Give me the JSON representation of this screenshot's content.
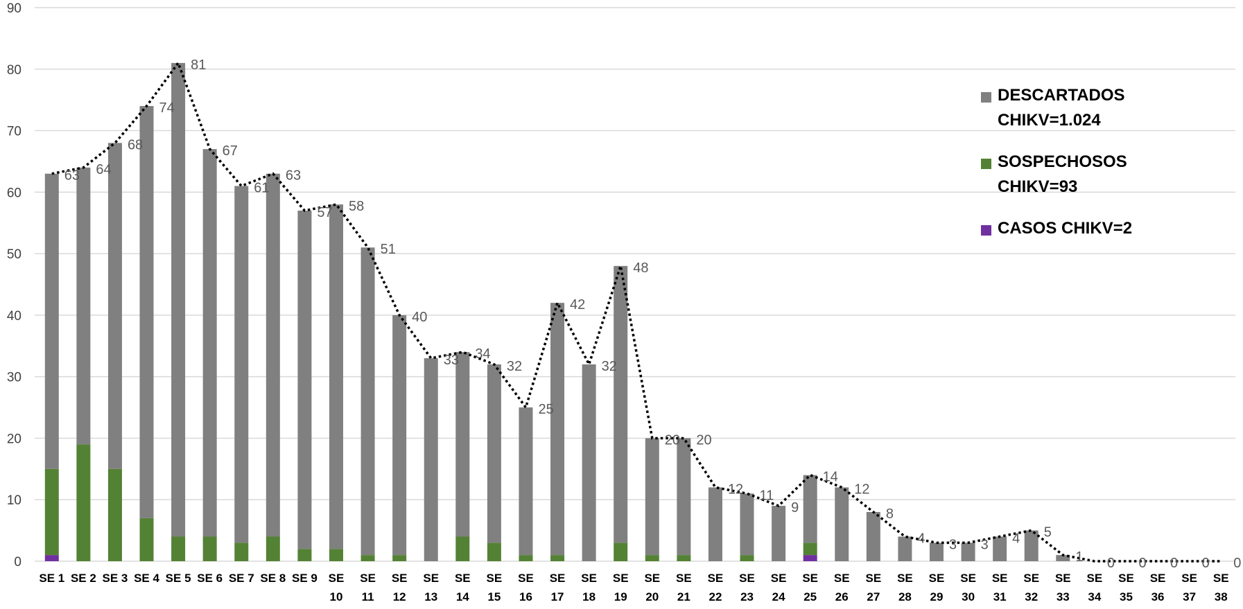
{
  "chart_data": {
    "type": "bar",
    "stacked": true,
    "ylim": [
      0,
      90
    ],
    "yticks": [
      0,
      10,
      20,
      30,
      40,
      50,
      60,
      70,
      80,
      90
    ],
    "grid": true,
    "legend_position": "right",
    "categories": [
      "SE 1",
      "SE 2",
      "SE 3",
      "SE 4",
      "SE 5",
      "SE 6",
      "SE 7",
      "SE 8",
      "SE 9",
      "SE 10",
      "SE 11",
      "SE 12",
      "SE 13",
      "SE 14",
      "SE 15",
      "SE 16",
      "SE 17",
      "SE 18",
      "SE 19",
      "SE 20",
      "SE 21",
      "SE 22",
      "SE 23",
      "SE 24",
      "SE 25",
      "SE 26",
      "SE 27",
      "SE 28",
      "SE 29",
      "SE 30",
      "SE 31",
      "SE 32",
      "SE 33",
      "SE 34",
      "SE 35",
      "SE 36",
      "SE 37",
      "SE 38"
    ],
    "series": [
      {
        "name": "CASOS CHIKV=2",
        "color": "#7030A0",
        "values": [
          1,
          0,
          0,
          0,
          0,
          0,
          0,
          0,
          0,
          0,
          0,
          0,
          0,
          0,
          0,
          0,
          0,
          0,
          0,
          0,
          0,
          0,
          0,
          0,
          1,
          0,
          0,
          0,
          0,
          0,
          0,
          0,
          0,
          0,
          0,
          0,
          0,
          0
        ]
      },
      {
        "name": "SOSPECHOSOS CHIKV=93",
        "color": "#548235",
        "values": [
          14,
          19,
          15,
          7,
          4,
          4,
          3,
          4,
          2,
          2,
          1,
          1,
          0,
          4,
          3,
          1,
          1,
          0,
          3,
          1,
          1,
          0,
          1,
          0,
          2,
          0,
          0,
          0,
          0,
          0,
          0,
          0,
          0,
          0,
          0,
          0,
          0,
          0
        ]
      },
      {
        "name": "DESCARTADOS CHIKV=1.024",
        "color": "#808080",
        "values": [
          48,
          45,
          53,
          67,
          77,
          63,
          58,
          59,
          55,
          56,
          50,
          39,
          33,
          30,
          29,
          24,
          41,
          32,
          45,
          19,
          19,
          12,
          10,
          9,
          11,
          12,
          8,
          4,
          3,
          3,
          4,
          5,
          1,
          0,
          0,
          0,
          0,
          0
        ]
      }
    ],
    "totals": [
      63,
      64,
      68,
      74,
      81,
      67,
      61,
      63,
      57,
      58,
      51,
      40,
      33,
      34,
      32,
      25,
      42,
      32,
      48,
      20,
      20,
      12,
      11,
      9,
      14,
      12,
      8,
      4,
      3,
      3,
      4,
      5,
      1,
      0,
      0,
      0,
      0,
      0
    ],
    "total_line_style": "dotted",
    "legend": [
      {
        "line1": "DESCARTADOS",
        "line2": "CHIKV=1.024",
        "color": "#808080"
      },
      {
        "line1": "SOSPECHOSOS",
        "line2": "CHIKV=93",
        "color": "#548235"
      },
      {
        "line1": "CASOS CHIKV=2",
        "line2": "",
        "color": "#7030A0"
      }
    ]
  }
}
